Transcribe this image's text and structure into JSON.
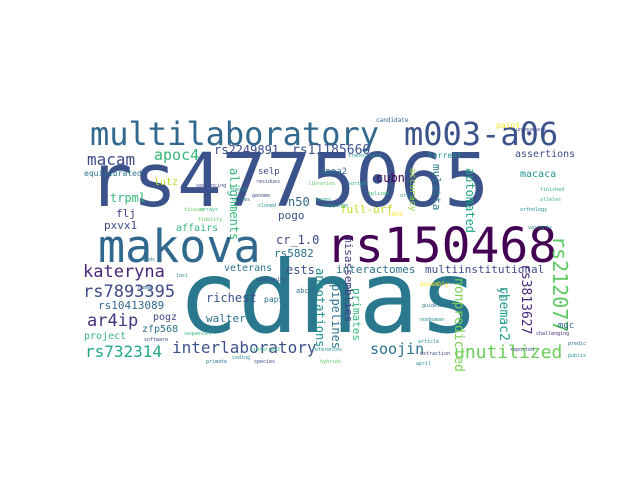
{
  "words": [
    {
      "text": "cdnas",
      "color": "#2a788e"
    },
    {
      "text": "rs4775065",
      "color": "#3b528b"
    },
    {
      "text": "rs150468",
      "color": "#440154"
    },
    {
      "text": "makova",
      "color": "#31688e"
    },
    {
      "text": "multilaboratory",
      "color": "#31688e"
    },
    {
      "text": "m003-a06",
      "color": "#3b528b"
    },
    {
      "text": "rs212077",
      "color": "#5ec962"
    },
    {
      "text": "kateryna",
      "color": "#482677"
    },
    {
      "text": "rs7893395",
      "color": "#3e4a89"
    },
    {
      "text": "interlaboratory",
      "color": "#3b528b"
    },
    {
      "text": "unutilized",
      "color": "#6ccd5a"
    },
    {
      "text": "interactomes",
      "color": "#2d708e"
    },
    {
      "text": "multiinstitutional",
      "color": "#3e4a89"
    },
    {
      "text": "soojin",
      "color": "#2c728e"
    },
    {
      "text": "ar4ip",
      "color": "#46327e"
    },
    {
      "text": "rs732314",
      "color": "#22a884"
    },
    {
      "text": "apoc4",
      "color": "#35b779"
    },
    {
      "text": "rs2249891",
      "color": "#3e4a89"
    },
    {
      "text": "rs11185660",
      "color": "#3b528b"
    },
    {
      "text": "macam",
      "color": "#3e4a89"
    },
    {
      "text": "alignments",
      "color": "#35b779"
    },
    {
      "text": "annotations",
      "color": "#443983"
    },
    {
      "text": "pipelines",
      "color": "#2c728e"
    },
    {
      "text": "misassemblies",
      "color": "#21918c"
    },
    {
      "text": "primates",
      "color": "#35b779"
    },
    {
      "text": "rhemac2",
      "color": "#1f9e89"
    },
    {
      "text": "rs3813627",
      "color": "#482878"
    },
    {
      "text": "nonpredicted",
      "color": "#7ad151"
    },
    {
      "text": "automated",
      "color": "#22a884"
    },
    {
      "text": "richest",
      "color": "#3b528b"
    },
    {
      "text": "walter",
      "color": "#2c728e"
    },
    {
      "text": "rs10413089",
      "color": "#31688e"
    },
    {
      "text": "pogz",
      "color": "#414487"
    },
    {
      "text": "zfp568",
      "color": "#2c728e"
    },
    {
      "text": "full-orf",
      "color": "#bddf26"
    },
    {
      "text": "cr_1.0",
      "color": "#3e4a89"
    },
    {
      "text": "n50",
      "color": "#31688e"
    },
    {
      "text": "pogo",
      "color": "#3b528b"
    },
    {
      "text": "cubn",
      "color": "#440154"
    },
    {
      "text": "mulatta",
      "color": "#2a788e"
    },
    {
      "text": "rs5882",
      "color": "#2c728e"
    },
    {
      "text": "ests",
      "color": "#3b528b"
    },
    {
      "text": "trpml",
      "color": "#35b779"
    },
    {
      "text": "flj",
      "color": "#443983"
    },
    {
      "text": "pxvx1",
      "color": "#3e4a89"
    },
    {
      "text": "macaca",
      "color": "#21918c"
    },
    {
      "text": "assertions",
      "color": "#3e4a89"
    },
    {
      "text": "affairs",
      "color": "#35b779"
    },
    {
      "text": "veterans",
      "color": "#2c728e"
    },
    {
      "text": "selp",
      "color": "#3e4a89"
    },
    {
      "text": "apoa2",
      "color": "#2c728e"
    },
    {
      "text": "lutz",
      "color": "#bddf26"
    },
    {
      "text": "project",
      "color": "#35b779"
    },
    {
      "text": "mgc",
      "color": "#31688e"
    },
    {
      "text": "yi",
      "color": "#21918c"
    },
    {
      "text": "abcc6",
      "color": "#2c728e"
    },
    {
      "text": "torrent",
      "color": "#21918c"
    },
    {
      "text": "equilibrated",
      "color": "#2c728e"
    },
    {
      "text": "paint",
      "color": "#fde725"
    },
    {
      "text": "paps",
      "color": "#2c728e"
    },
    {
      "text": "accuracy",
      "color": "#90d743"
    },
    {
      "text": "candidate",
      "color": "#31688e"
    },
    {
      "text": "libraries",
      "color": "#5ec962"
    },
    {
      "text": "sorted",
      "color": "#22a884"
    },
    {
      "text": "rhesus",
      "color": "#21918c"
    },
    {
      "text": "residues",
      "color": "#3e4a89"
    },
    {
      "text": "fidelity",
      "color": "#5ec962"
    },
    {
      "text": "arrays",
      "color": "#35b779"
    },
    {
      "text": "genome",
      "color": "#3e4a89"
    },
    {
      "text": "cloned",
      "color": "#21918c"
    },
    {
      "text": "cdna",
      "color": "#fde725"
    },
    {
      "text": "orfs",
      "color": "#21918c"
    },
    {
      "text": "clones",
      "color": "#2c728e"
    },
    {
      "text": "exons",
      "color": "#1f9e89"
    },
    {
      "text": "spliced",
      "color": "#35b779"
    },
    {
      "text": "transcripts",
      "color": "#21918c"
    },
    {
      "text": "assembly",
      "color": "#fde725"
    },
    {
      "text": "software",
      "color": "#3e4a89"
    },
    {
      "text": "variants",
      "color": "#21918c"
    },
    {
      "text": "uniqueness",
      "color": "#3e4a89"
    },
    {
      "text": "challenging",
      "color": "#482878"
    },
    {
      "text": "orthology",
      "color": "#21918c"
    },
    {
      "text": "alleles",
      "color": "#35b779"
    },
    {
      "text": "guidelines",
      "color": "#2c728e"
    },
    {
      "text": "article",
      "color": "#21918c"
    },
    {
      "text": "extraction",
      "color": "#3e4a89"
    },
    {
      "text": "april",
      "color": "#21918c"
    },
    {
      "text": "hybrids",
      "color": "#5ec962"
    },
    {
      "text": "primate",
      "color": "#2c728e"
    },
    {
      "text": "species",
      "color": "#3e4a89"
    },
    {
      "text": "coding",
      "color": "#21918c"
    },
    {
      "text": "sequences",
      "color": "#35b779"
    },
    {
      "text": "sequencing",
      "color": "#3e4a89"
    },
    {
      "text": "reads",
      "color": "#2c728e"
    },
    {
      "text": "loci",
      "color": "#21918c"
    },
    {
      "text": "tissues",
      "color": "#5ec962"
    },
    {
      "text": "human",
      "color": "#31688e"
    },
    {
      "text": "mappings",
      "color": "#21918c"
    },
    {
      "text": "libraries2",
      "color": "#35b779"
    },
    {
      "text": "references",
      "color": "#21918c"
    },
    {
      "text": "contiguity",
      "color": "#3e4a89"
    },
    {
      "text": "nonhuman",
      "color": "#21918c"
    },
    {
      "text": "finished",
      "color": "#35b779"
    },
    {
      "text": "predicted",
      "color": "#2c728e"
    },
    {
      "text": "published",
      "color": "#21918c"
    },
    {
      "text": "reported",
      "color": "#3e4a89"
    }
  ]
}
